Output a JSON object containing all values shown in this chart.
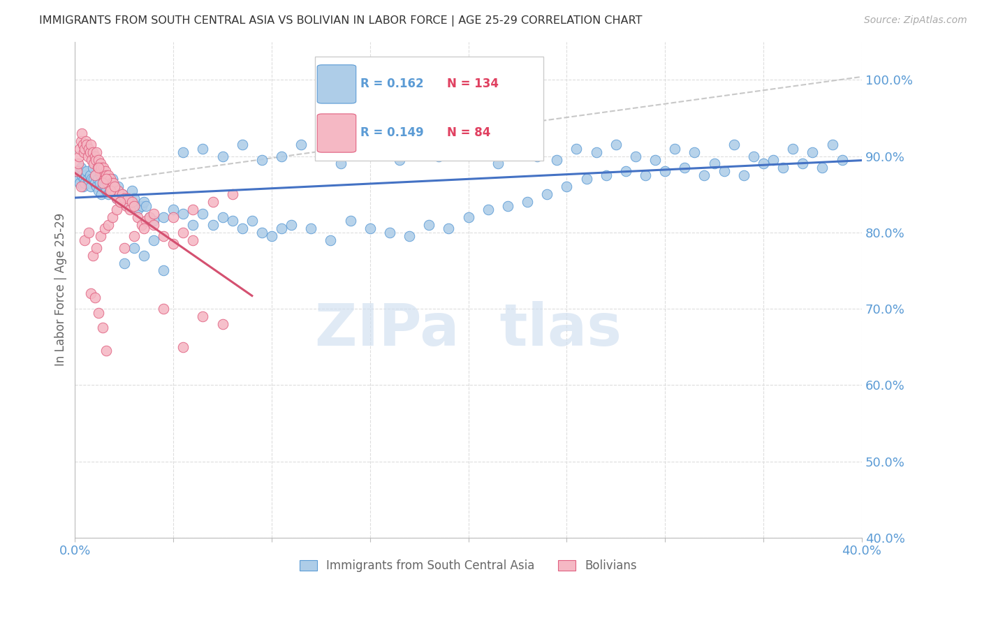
{
  "title": "IMMIGRANTS FROM SOUTH CENTRAL ASIA VS BOLIVIAN IN LABOR FORCE | AGE 25-29 CORRELATION CHART",
  "source": "Source: ZipAtlas.com",
  "ylabel": "In Labor Force | Age 25-29",
  "legend_blue_R": "0.162",
  "legend_blue_N": "134",
  "legend_pink_R": "0.149",
  "legend_pink_N": "84",
  "legend_label_blue": "Immigrants from South Central Asia",
  "legend_label_pink": "Bolivians",
  "blue_dot_face": "#aecde8",
  "blue_dot_edge": "#5b9bd5",
  "pink_dot_face": "#f5b8c4",
  "pink_dot_edge": "#e06080",
  "blue_line_color": "#4472c4",
  "pink_line_color": "#d45070",
  "dashed_line_color": "#c8c8c8",
  "axis_label_color": "#5b9bd5",
  "title_color": "#333333",
  "grid_color": "#dddddd",
  "watermark_color": "#d0dff0",
  "xlim": [
    0,
    40
  ],
  "ylim": [
    40,
    105
  ],
  "yticks": [
    40,
    50,
    60,
    70,
    80,
    90,
    100
  ],
  "xticks": [
    0,
    5,
    10,
    15,
    20,
    25,
    30,
    35,
    40
  ],
  "blue_x": [
    0.1,
    0.15,
    0.2,
    0.25,
    0.3,
    0.35,
    0.4,
    0.45,
    0.5,
    0.55,
    0.6,
    0.65,
    0.7,
    0.75,
    0.8,
    0.85,
    0.9,
    0.95,
    1.0,
    1.05,
    1.1,
    1.15,
    1.2,
    1.25,
    1.3,
    1.35,
    1.4,
    1.45,
    1.5,
    1.55,
    1.6,
    1.65,
    1.7,
    1.75,
    1.8,
    1.85,
    1.9,
    1.95,
    2.0,
    2.05,
    2.1,
    2.15,
    2.2,
    2.25,
    2.3,
    2.4,
    2.5,
    2.6,
    2.7,
    2.8,
    2.9,
    3.0,
    3.2,
    3.4,
    3.5,
    3.6,
    3.8,
    4.0,
    4.5,
    5.0,
    5.5,
    6.0,
    6.5,
    7.0,
    7.5,
    8.0,
    8.5,
    9.0,
    9.5,
    10.0,
    10.5,
    11.0,
    12.0,
    13.0,
    14.0,
    15.0,
    16.0,
    17.0,
    18.0,
    19.0,
    20.0,
    21.0,
    22.0,
    23.0,
    24.0,
    25.0,
    26.0,
    27.0,
    28.0,
    29.0,
    30.0,
    31.0,
    32.0,
    33.0,
    34.0,
    35.0,
    36.0,
    37.0,
    38.0,
    39.0,
    5.5,
    6.5,
    7.5,
    8.5,
    9.5,
    10.5,
    11.5,
    12.5,
    13.5,
    14.5,
    15.5,
    16.5,
    17.5,
    18.5,
    19.5,
    20.5,
    21.5,
    22.5,
    23.5,
    24.5,
    25.5,
    26.5,
    27.5,
    28.5,
    29.5,
    30.5,
    31.5,
    32.5,
    33.5,
    34.5,
    35.5,
    36.5,
    37.5,
    38.5,
    2.5,
    3.0,
    3.5,
    4.0,
    4.5
  ],
  "blue_y": [
    87.5,
    88.0,
    87.0,
    86.5,
    88.5,
    87.5,
    86.0,
    87.0,
    86.5,
    87.5,
    88.0,
    87.0,
    86.5,
    87.5,
    86.0,
    87.0,
    88.5,
    87.0,
    86.5,
    87.5,
    86.0,
    87.0,
    85.5,
    86.5,
    87.5,
    85.0,
    86.0,
    87.5,
    86.0,
    87.0,
    85.5,
    86.5,
    85.0,
    86.5,
    85.5,
    86.0,
    87.0,
    85.5,
    86.0,
    85.5,
    84.5,
    85.5,
    86.0,
    85.0,
    84.5,
    85.0,
    84.5,
    84.0,
    83.5,
    84.0,
    85.5,
    84.5,
    83.0,
    83.5,
    84.0,
    83.5,
    82.0,
    81.5,
    82.0,
    83.0,
    82.5,
    81.0,
    82.5,
    81.0,
    82.0,
    81.5,
    80.5,
    81.5,
    80.0,
    79.5,
    80.5,
    81.0,
    80.5,
    79.0,
    81.5,
    80.5,
    80.0,
    79.5,
    81.0,
    80.5,
    82.0,
    83.0,
    83.5,
    84.0,
    85.0,
    86.0,
    87.0,
    87.5,
    88.0,
    87.5,
    88.0,
    88.5,
    87.5,
    88.0,
    87.5,
    89.0,
    88.5,
    89.0,
    88.5,
    89.5,
    90.5,
    91.0,
    90.0,
    91.5,
    89.5,
    90.0,
    91.5,
    90.5,
    89.0,
    91.0,
    90.5,
    89.5,
    91.0,
    90.0,
    91.5,
    90.5,
    89.0,
    91.5,
    90.0,
    89.5,
    91.0,
    90.5,
    91.5,
    90.0,
    89.5,
    91.0,
    90.5,
    89.0,
    91.5,
    90.0,
    89.5,
    91.0,
    90.5,
    91.5,
    76.0,
    78.0,
    77.0,
    79.0,
    75.0
  ],
  "pink_x": [
    0.1,
    0.15,
    0.2,
    0.25,
    0.3,
    0.35,
    0.4,
    0.45,
    0.5,
    0.55,
    0.6,
    0.65,
    0.7,
    0.75,
    0.8,
    0.85,
    0.9,
    0.95,
    1.0,
    1.05,
    1.1,
    1.15,
    1.2,
    1.25,
    1.3,
    1.35,
    1.4,
    1.45,
    1.5,
    1.55,
    1.6,
    1.65,
    1.7,
    1.75,
    1.8,
    1.85,
    1.9,
    1.95,
    2.0,
    2.1,
    2.2,
    2.3,
    2.4,
    2.5,
    2.6,
    2.7,
    2.8,
    2.9,
    3.0,
    3.2,
    3.4,
    3.6,
    3.8,
    4.0,
    4.5,
    5.0,
    5.5,
    6.0,
    1.0,
    1.2,
    1.4,
    1.6,
    1.8,
    2.0,
    2.5,
    3.0,
    3.5,
    4.0,
    5.0,
    6.0,
    7.0,
    8.0,
    0.3,
    0.5,
    0.7,
    0.9,
    1.1,
    1.3,
    1.5,
    1.7,
    1.9,
    2.1,
    2.3
  ],
  "pink_y": [
    88.0,
    89.0,
    90.0,
    91.0,
    92.0,
    93.0,
    91.5,
    90.5,
    91.0,
    92.0,
    91.5,
    90.0,
    91.0,
    90.5,
    91.5,
    89.5,
    90.5,
    89.0,
    90.0,
    89.5,
    90.5,
    88.5,
    89.5,
    88.0,
    89.0,
    88.5,
    87.5,
    88.5,
    87.0,
    88.0,
    87.5,
    86.5,
    87.5,
    86.0,
    87.0,
    86.5,
    85.5,
    86.5,
    85.0,
    84.5,
    85.5,
    84.0,
    85.0,
    84.5,
    83.5,
    84.5,
    83.0,
    84.0,
    83.5,
    82.0,
    81.0,
    81.5,
    82.0,
    82.5,
    79.5,
    78.5,
    80.0,
    79.0,
    87.5,
    88.5,
    86.5,
    87.0,
    85.5,
    86.0,
    78.0,
    79.5,
    80.5,
    81.0,
    82.0,
    83.0,
    84.0,
    85.0,
    86.0,
    79.0,
    80.0,
    77.0,
    78.0,
    79.5,
    80.5,
    81.0,
    82.0,
    83.0,
    84.0
  ],
  "pink_low_x": [
    4.5,
    5.5,
    6.5,
    7.5,
    0.8,
    1.0,
    1.2,
    1.4,
    1.6
  ],
  "pink_low_y": [
    70.0,
    65.0,
    69.0,
    68.0,
    72.0,
    71.5,
    69.5,
    67.5,
    64.5
  ]
}
